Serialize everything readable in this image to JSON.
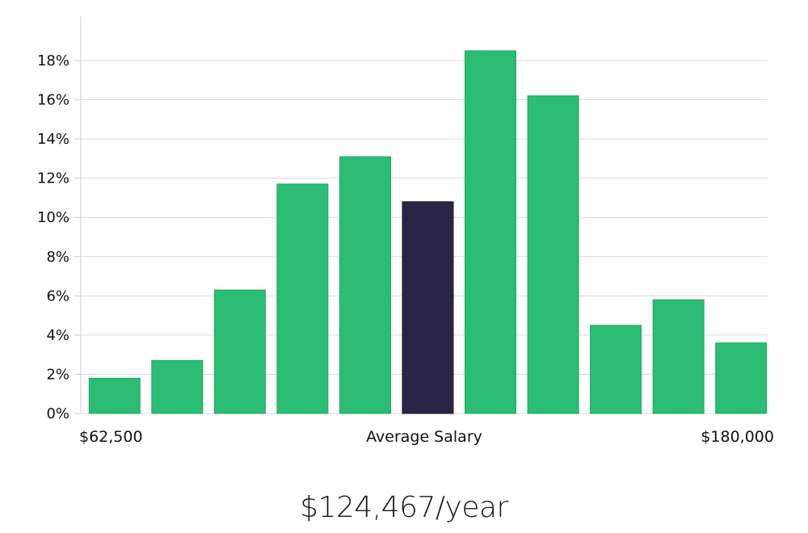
{
  "chart_data": {
    "type": "bar",
    "title": "",
    "xlabel": "Average Salary",
    "ylabel": "",
    "x_axis_labels": {
      "left": "$62,500",
      "center": "Average Salary",
      "right": "$180,000"
    },
    "y_ticks": [
      0,
      2,
      4,
      6,
      8,
      10,
      12,
      14,
      16,
      18
    ],
    "y_tick_format": "%",
    "ylim": [
      0,
      19.5
    ],
    "grid": true,
    "highlight_index": 5,
    "values": [
      1.8,
      2.7,
      6.3,
      11.7,
      13.1,
      10.8,
      18.5,
      16.2,
      4.5,
      5.8,
      3.6
    ]
  },
  "colors": {
    "bar": "#2bbd73",
    "bar_highlight": "#2a2547",
    "grid": "#d9d9d9",
    "axis": "#cfcfcf"
  },
  "salary_text": "$124,467/year"
}
